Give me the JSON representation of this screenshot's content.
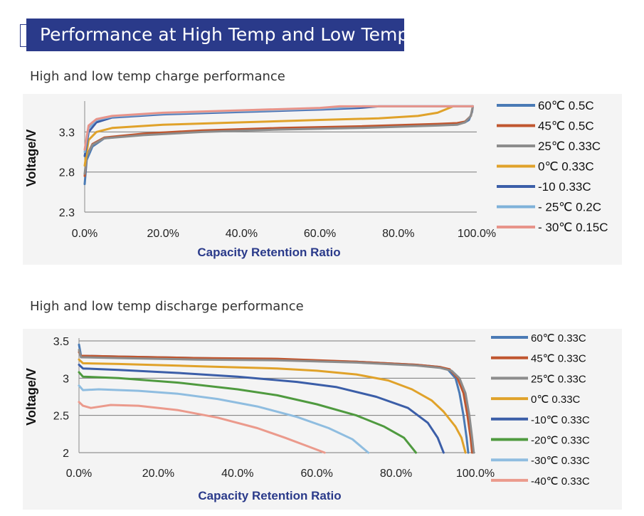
{
  "header": {
    "title": "Performance at High Temp and Low Temp"
  },
  "colors": {
    "header_bg": "#2a3a8a",
    "axis_title": "#2a3a8a"
  },
  "chart_data": [
    {
      "type": "line",
      "title": "High and low temp charge performance",
      "xlabel": "Capacity Retention Ratio",
      "ylabel": "Voltage/V",
      "xlim": [
        0,
        100
      ],
      "ylim": [
        2.3,
        3.65
      ],
      "x_ticks": [
        "0.0%",
        "20.0%",
        "40.0%",
        "60.0%",
        "80.0%",
        "100.0%"
      ],
      "y_ticks": [
        "2.3",
        "2.8",
        "3.3"
      ],
      "grid": "horizontal",
      "legend": "right",
      "series": [
        {
          "name": "60℃ 0.5C",
          "color": "#4a7ab5",
          "points": [
            [
              0,
              2.65
            ],
            [
              0.5,
              2.95
            ],
            [
              2,
              3.12
            ],
            [
              5,
              3.22
            ],
            [
              15,
              3.27
            ],
            [
              30,
              3.31
            ],
            [
              50,
              3.34
            ],
            [
              70,
              3.36
            ],
            [
              90,
              3.39
            ],
            [
              95,
              3.4
            ],
            [
              97,
              3.42
            ],
            [
              98,
              3.45
            ],
            [
              98.8,
              3.55
            ],
            [
              99,
              3.62
            ]
          ]
        },
        {
          "name": "45℃ 0.5C",
          "color": "#c0562f",
          "points": [
            [
              0,
              2.75
            ],
            [
              0.5,
              3.0
            ],
            [
              2,
              3.15
            ],
            [
              5,
              3.23
            ],
            [
              15,
              3.28
            ],
            [
              30,
              3.32
            ],
            [
              50,
              3.35
            ],
            [
              70,
              3.37
            ],
            [
              90,
              3.4
            ],
            [
              95,
              3.41
            ],
            [
              97,
              3.43
            ],
            [
              98.5,
              3.5
            ],
            [
              99,
              3.62
            ]
          ]
        },
        {
          "name": "25℃ 0.33C",
          "color": "#8c8c8c",
          "points": [
            [
              0,
              2.78
            ],
            [
              0.5,
              3.0
            ],
            [
              2,
              3.14
            ],
            [
              5,
              3.22
            ],
            [
              15,
              3.26
            ],
            [
              30,
              3.3
            ],
            [
              50,
              3.33
            ],
            [
              70,
              3.35
            ],
            [
              90,
              3.38
            ],
            [
              95,
              3.39
            ],
            [
              97,
              3.42
            ],
            [
              98.5,
              3.5
            ],
            [
              99,
              3.62
            ]
          ]
        },
        {
          "name": "0℃ 0.33C",
          "color": "#e0a22a",
          "points": [
            [
              0,
              2.88
            ],
            [
              1,
              3.2
            ],
            [
              3,
              3.3
            ],
            [
              7,
              3.35
            ],
            [
              20,
              3.39
            ],
            [
              40,
              3.42
            ],
            [
              60,
              3.45
            ],
            [
              75,
              3.47
            ],
            [
              85,
              3.5
            ],
            [
              90,
              3.54
            ],
            [
              93,
              3.6
            ],
            [
              94,
              3.62
            ],
            [
              99,
              3.62
            ]
          ]
        },
        {
          "name": "-10 0.33C",
          "color": "#3b5ea8",
          "points": [
            [
              0,
              3.0
            ],
            [
              1,
              3.3
            ],
            [
              3,
              3.42
            ],
            [
              7,
              3.48
            ],
            [
              20,
              3.52
            ],
            [
              40,
              3.55
            ],
            [
              60,
              3.58
            ],
            [
              70,
              3.6
            ],
            [
              75,
              3.62
            ],
            [
              99,
              3.62
            ]
          ]
        },
        {
          "name": "- 25℃ 0.2C",
          "color": "#7eb1d9",
          "points": [
            [
              0,
              3.05
            ],
            [
              1,
              3.35
            ],
            [
              3,
              3.45
            ],
            [
              7,
              3.49
            ],
            [
              20,
              3.53
            ],
            [
              40,
              3.56
            ],
            [
              60,
              3.59
            ],
            [
              68,
              3.61
            ],
            [
              71,
              3.62
            ],
            [
              99,
              3.62
            ]
          ]
        },
        {
          "name": "- 30℃ 0.15C",
          "color": "#e8948a",
          "points": [
            [
              0,
              3.08
            ],
            [
              1,
              3.38
            ],
            [
              3,
              3.46
            ],
            [
              7,
              3.5
            ],
            [
              20,
              3.54
            ],
            [
              40,
              3.57
            ],
            [
              60,
              3.6
            ],
            [
              65,
              3.62
            ],
            [
              99,
              3.62
            ]
          ]
        }
      ]
    },
    {
      "type": "line",
      "title": "High and low temp discharge performance",
      "xlabel": "Capacity Retention Ratio",
      "ylabel": "Voltage/V",
      "xlim": [
        0,
        100
      ],
      "ylim": [
        2.0,
        3.5
      ],
      "x_ticks": [
        "0.0%",
        "20.0%",
        "40.0%",
        "60.0%",
        "80.0%",
        "100.0%"
      ],
      "y_ticks": [
        "3.5",
        "3",
        "2.5",
        "2"
      ],
      "grid": "horizontal",
      "legend": "right",
      "series": [
        {
          "name": "60℃ 0.33C",
          "color": "#4a7ab5",
          "points": [
            [
              0,
              3.45
            ],
            [
              0.5,
              3.3
            ],
            [
              10,
              3.29
            ],
            [
              30,
              3.27
            ],
            [
              50,
              3.25
            ],
            [
              70,
              3.22
            ],
            [
              85,
              3.18
            ],
            [
              91,
              3.15
            ],
            [
              93,
              3.12
            ],
            [
              95,
              3.0
            ],
            [
              96,
              2.8
            ],
            [
              97,
              2.5
            ],
            [
              97.8,
              2.2
            ],
            [
              98.2,
              2.0
            ]
          ]
        },
        {
          "name": "45℃ 0.33C",
          "color": "#c0562f",
          "points": [
            [
              0,
              3.35
            ],
            [
              0.5,
              3.3
            ],
            [
              10,
              3.29
            ],
            [
              30,
              3.27
            ],
            [
              50,
              3.26
            ],
            [
              70,
              3.22
            ],
            [
              85,
              3.18
            ],
            [
              91,
              3.15
            ],
            [
              93.5,
              3.12
            ],
            [
              95.5,
              3.0
            ],
            [
              97,
              2.8
            ],
            [
              98,
              2.5
            ],
            [
              98.8,
              2.2
            ],
            [
              99.2,
              2.0
            ]
          ]
        },
        {
          "name": "25℃ 0.33C",
          "color": "#8c8c8c",
          "points": [
            [
              0,
              3.38
            ],
            [
              0.5,
              3.28
            ],
            [
              10,
              3.27
            ],
            [
              30,
              3.25
            ],
            [
              50,
              3.24
            ],
            [
              70,
              3.21
            ],
            [
              85,
              3.17
            ],
            [
              91,
              3.14
            ],
            [
              94,
              3.1
            ],
            [
              96,
              3.0
            ],
            [
              97.5,
              2.8
            ],
            [
              98.5,
              2.5
            ],
            [
              99.2,
              2.2
            ],
            [
              99.6,
              2.0
            ]
          ]
        },
        {
          "name": "0℃ 0.33C",
          "color": "#e0a22a",
          "points": [
            [
              0,
              3.25
            ],
            [
              1,
              3.2
            ],
            [
              10,
              3.19
            ],
            [
              30,
              3.16
            ],
            [
              50,
              3.13
            ],
            [
              60,
              3.1
            ],
            [
              70,
              3.05
            ],
            [
              78,
              2.97
            ],
            [
              84,
              2.85
            ],
            [
              89,
              2.7
            ],
            [
              92,
              2.55
            ],
            [
              95,
              2.35
            ],
            [
              96.5,
              2.2
            ],
            [
              97.5,
              2.0
            ]
          ]
        },
        {
          "name": "-10℃ 0.33C",
          "color": "#3b5ea8",
          "points": [
            [
              0,
              3.18
            ],
            [
              1,
              3.13
            ],
            [
              10,
              3.11
            ],
            [
              25,
              3.07
            ],
            [
              40,
              3.02
            ],
            [
              55,
              2.95
            ],
            [
              65,
              2.88
            ],
            [
              75,
              2.75
            ],
            [
              83,
              2.6
            ],
            [
              88,
              2.4
            ],
            [
              90.5,
              2.2
            ],
            [
              92,
              2.0
            ]
          ]
        },
        {
          "name": "-20℃ 0.33C",
          "color": "#4f9a3f",
          "points": [
            [
              0,
              3.08
            ],
            [
              1,
              3.02
            ],
            [
              10,
              3.0
            ],
            [
              25,
              2.94
            ],
            [
              40,
              2.85
            ],
            [
              50,
              2.77
            ],
            [
              60,
              2.65
            ],
            [
              70,
              2.5
            ],
            [
              77,
              2.35
            ],
            [
              82,
              2.2
            ],
            [
              85,
              2.0
            ]
          ]
        },
        {
          "name": "-30℃ 0.33C",
          "color": "#8fbde0",
          "points": [
            [
              0,
              2.9
            ],
            [
              1,
              2.84
            ],
            [
              5,
              2.85
            ],
            [
              15,
              2.83
            ],
            [
              25,
              2.79
            ],
            [
              35,
              2.72
            ],
            [
              45,
              2.62
            ],
            [
              55,
              2.48
            ],
            [
              63,
              2.33
            ],
            [
              69,
              2.18
            ],
            [
              73,
              2.0
            ]
          ]
        },
        {
          "name": "-40℃ 0.33C",
          "color": "#eb9a8c",
          "points": [
            [
              0,
              2.68
            ],
            [
              1,
              2.63
            ],
            [
              3,
              2.6
            ],
            [
              8,
              2.64
            ],
            [
              15,
              2.63
            ],
            [
              25,
              2.57
            ],
            [
              35,
              2.47
            ],
            [
              45,
              2.33
            ],
            [
              52,
              2.2
            ],
            [
              58,
              2.08
            ],
            [
              62,
              2.0
            ]
          ]
        }
      ]
    }
  ]
}
